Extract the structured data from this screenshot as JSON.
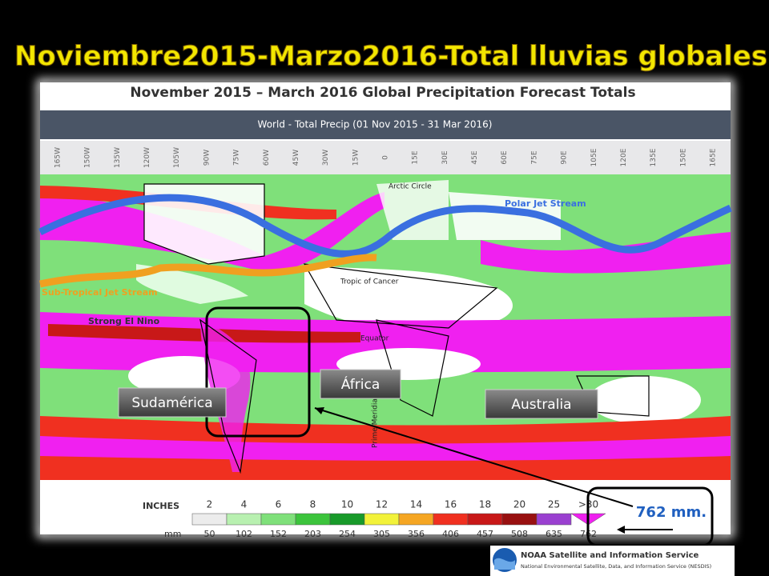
{
  "slide_title": "Noviembre2015-Marzo2016-Total lluvias globales",
  "map": {
    "title": "November 2015 – March 2016 Global Precipitation Forecast Totals",
    "subtitle": "World - Total Precip (01 Nov 2015 - 31 Mar 2016)",
    "longitudes": [
      "165W",
      "150W",
      "135W",
      "120W",
      "105W",
      "90W",
      "75W",
      "60W",
      "45W",
      "30W",
      "15W",
      "0",
      "15E",
      "30E",
      "45E",
      "60E",
      "75E",
      "90E",
      "105E",
      "120E",
      "135E",
      "150E",
      "165E"
    ],
    "labels": {
      "arctic_circle": "Arctic Circle",
      "polar_jet": "Polar Jet Stream",
      "subtropical_jet": "Sub-Tropical Jet Stream",
      "el_nino": "Strong El Nino",
      "tropic_cancer": "Tropic of Cancer",
      "equator": "Equator",
      "prime_meridian": "Prime Meridian"
    },
    "legend": {
      "inches_label": "INCHES",
      "mm_label": "mm",
      "inches": [
        2,
        4,
        6,
        8,
        10,
        12,
        14,
        16,
        18,
        20,
        25,
        ">30"
      ],
      "mm": [
        50,
        102,
        152,
        203,
        254,
        305,
        356,
        406,
        457,
        508,
        635,
        762
      ],
      "colors": [
        "#ececec",
        "#b8f0b0",
        "#7fe07a",
        "#3cc43c",
        "#189a2a",
        "#f2f23a",
        "#f5a623",
        "#f03020",
        "#c81818",
        "#981010",
        "#9a40d0",
        "#f020f0"
      ]
    }
  },
  "callouts": {
    "south_america": "Sudamérica",
    "africa": "África",
    "australia": "Australia",
    "rain_total": "762 mm."
  },
  "footer": {
    "agency": "NOAA Satellite and Information Service",
    "agency_full": "National Environmental Satellite, Data, and Information Service (NESDIS)"
  }
}
